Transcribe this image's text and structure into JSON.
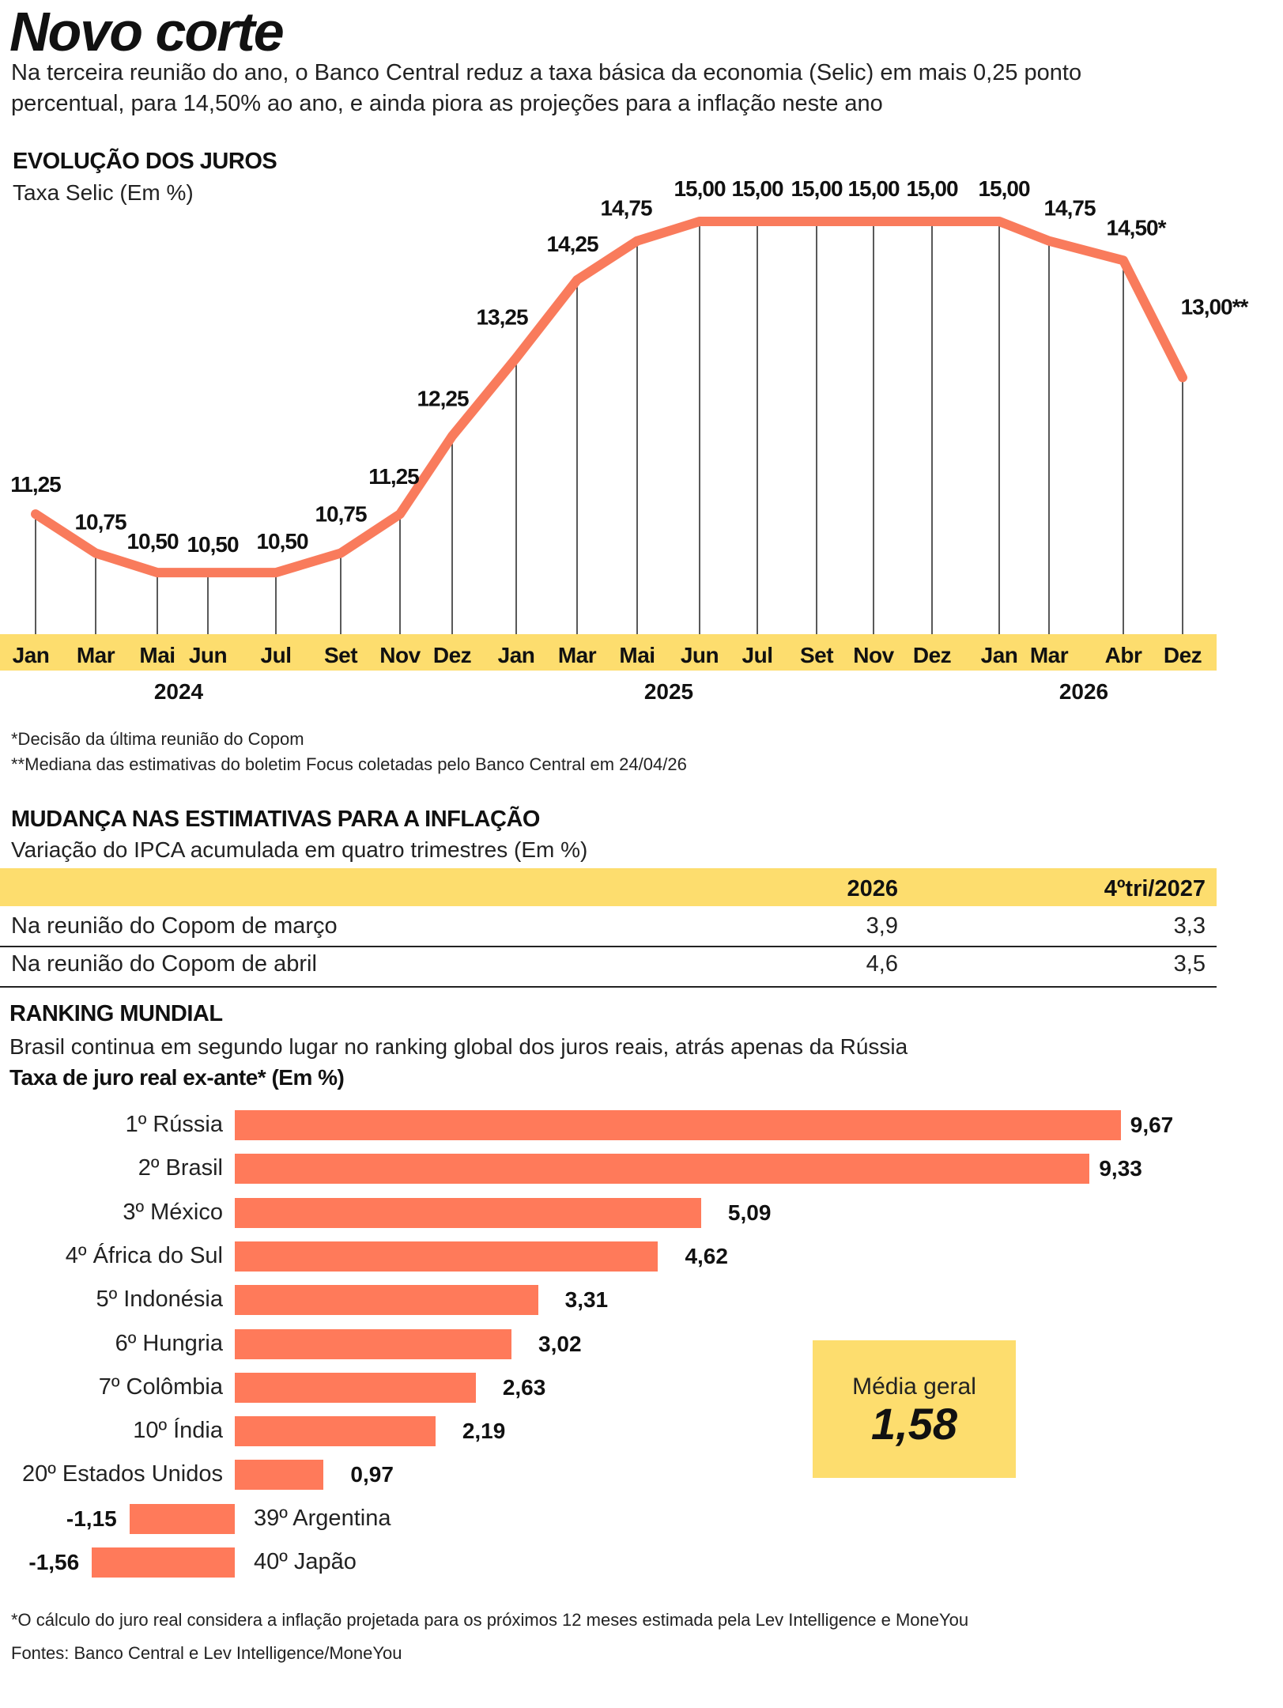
{
  "title": "Novo corte",
  "subtitle_lines": [
    "Na terceira reunião do ano, o Banco Central reduz a taxa básica da economia (Selic) em mais 0,25 ponto",
    "percentual, para 14,50% ao ano, e ainda piora as projeções para a inflação neste ano"
  ],
  "colors": {
    "line": "#F97B5C",
    "bar": "#FF7A5A",
    "yellow": "#FDDD6E"
  },
  "chart_data": [
    {
      "type": "line",
      "title": "EVOLUÇÃO DOS JUROS",
      "subtitle": "Taxa Selic (Em %)",
      "categories": [
        "Jan",
        "Mar",
        "Mai",
        "Jun",
        "Jul",
        "Set",
        "Nov",
        "Dez",
        "Jan",
        "Mar",
        "Mai",
        "Jun",
        "Jul",
        "Set",
        "Nov",
        "Dez",
        "Jan",
        "Mar",
        "Abr",
        "Dez"
      ],
      "years": [
        {
          "label": "2024"
        },
        {
          "label": "2025"
        },
        {
          "label": "2026"
        }
      ],
      "values": [
        11.25,
        10.75,
        10.5,
        10.5,
        10.5,
        10.75,
        11.25,
        12.25,
        13.25,
        14.25,
        14.75,
        15,
        15,
        15,
        15,
        15,
        15,
        14.75,
        14.5,
        13
      ],
      "labels": [
        "11,25",
        "10,75",
        "10,50",
        "10,50",
        "10,50",
        "10,75",
        "11,25",
        "12,25",
        "13,25",
        "14,25",
        "14,75",
        "15,00",
        "15,00",
        "15,00",
        "15,00",
        "15,00",
        "15,00",
        "14,75",
        "14,50*",
        "13,00**"
      ],
      "footnotes": [
        "*Decisão da última reunião do Copom",
        "**Mediana das estimativas do boletim Focus coletadas pelo Banco Central em 24/04/26"
      ]
    },
    {
      "type": "table",
      "title": "MUDANÇA NAS ESTIMATIVAS PARA A INFLAÇÃO",
      "subtitle": "Variação do IPCA acumulada em quatro trimestres (Em %)",
      "columns": [
        "",
        "2026",
        "4ºtri/2027"
      ],
      "rows": [
        [
          "Na reunião do Copom de março",
          "3,9",
          "3,3"
        ],
        [
          "Na reunião do Copom de abril",
          "4,6",
          "3,5"
        ]
      ]
    },
    {
      "type": "bar",
      "title": "RANKING MUNDIAL",
      "subtitle": "Brasil continua em segundo lugar no ranking global dos juros reais, atrás apenas da Rússia",
      "ylabel": "Taxa de juro real ex-ante* (Em %)",
      "categories": [
        "1º Rússia",
        "2º Brasil",
        "3º México",
        "4º África do Sul",
        "5º Indonésia",
        "6º Hungria",
        "7º Colômbia",
        "10º Índia",
        "20º Estados Unidos",
        "39º Argentina",
        "40º Japão"
      ],
      "values": [
        9.67,
        9.33,
        5.09,
        4.62,
        3.31,
        3.02,
        2.63,
        2.19,
        0.97,
        -1.15,
        -1.56
      ],
      "labels": [
        "9,67",
        "9,33",
        "5,09",
        "4,62",
        "3,31",
        "3,02",
        "2,63",
        "2,19",
        "0,97",
        "-1,15",
        "-1,56"
      ],
      "average": {
        "label": "Média geral",
        "value": "1,58"
      },
      "footnote": "*O cálculo do juro real considera a inflação projetada para os próximos 12 meses estimada pela Lev Intelligence e MoneYou"
    }
  ],
  "source": "Fontes: Banco Central e Lev Intelligence/MoneYou"
}
